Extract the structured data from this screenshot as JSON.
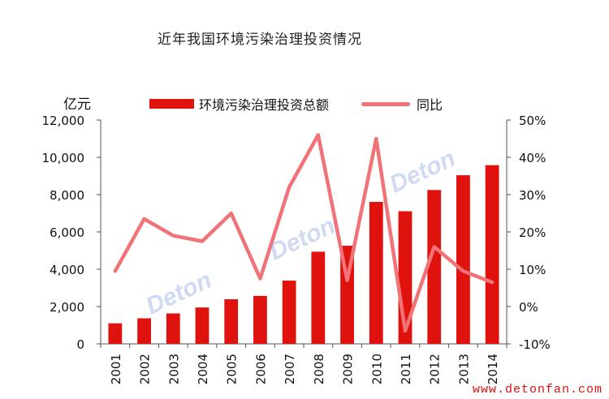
{
  "title": "近年我国环境污染治理投资情况",
  "unit_label": "亿元",
  "watermark_url": "www.detonfan.com",
  "watermark_text": "Deton",
  "chart_data": {
    "type": "bar+line",
    "categories": [
      "2001",
      "2002",
      "2003",
      "2004",
      "2005",
      "2006",
      "2007",
      "2008",
      "2009",
      "2010",
      "2011",
      "2012",
      "2013",
      "2014"
    ],
    "series": [
      {
        "name": "环境污染治理投资总额",
        "type": "bar",
        "axis": "left",
        "color": "#e0120e",
        "values": [
          1100,
          1370,
          1630,
          1950,
          2390,
          2570,
          3390,
          4940,
          5260,
          7610,
          7110,
          8250,
          9040,
          9580
        ]
      },
      {
        "name": "同比",
        "type": "line",
        "axis": "right",
        "color": "#f07377",
        "values": [
          9.5,
          23.5,
          19,
          17.5,
          25,
          7.5,
          32,
          46,
          7,
          45,
          -6.5,
          16,
          9.5,
          6.5
        ]
      }
    ],
    "y_left": {
      "min": 0,
      "max": 12000,
      "ticks": [
        "0",
        "2,000",
        "4,000",
        "6,000",
        "8,000",
        "10,000",
        "12,000"
      ]
    },
    "y_right": {
      "min": -10,
      "max": 50,
      "ticks": [
        "-10%",
        "0%",
        "10%",
        "20%",
        "30%",
        "40%",
        "50%"
      ]
    },
    "legend_position": "top",
    "grid": false
  }
}
